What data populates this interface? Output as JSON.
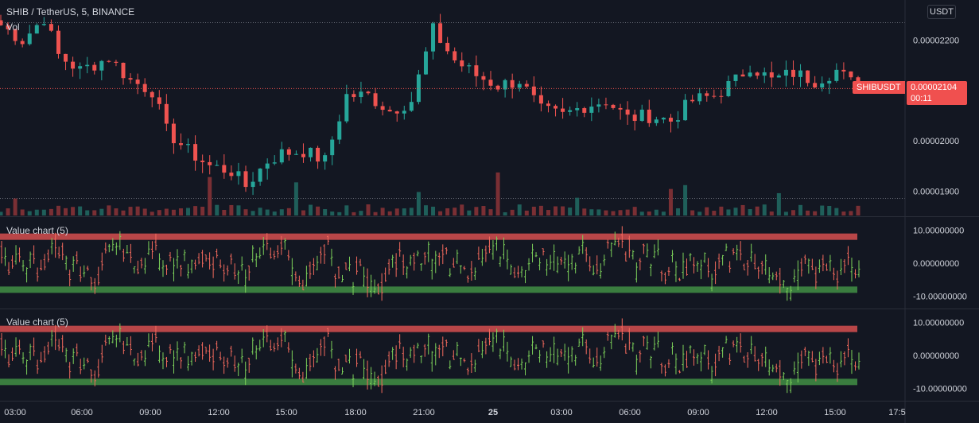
{
  "header": {
    "symbol_title": "SHIB / TetherUS, 5, BINANCE",
    "volume_label": "Vol",
    "currency_button": "USDT"
  },
  "last_price": {
    "symbol": "SHIBUSDT",
    "value": "0.00002104",
    "countdown": "00:11"
  },
  "colors": {
    "background": "#131722",
    "up": "#26a69a",
    "down": "#ef5350",
    "ind_up": "#7cd05a",
    "ind_down": "#f36a5d",
    "overbought_band": "#b84648",
    "oversold_band": "#3a7d3f",
    "axis_text": "#d1d4dc"
  },
  "x_axis": {
    "labels": [
      "03:00",
      "06:00",
      "09:00",
      "12:00",
      "15:00",
      "18:00",
      "21:00",
      "25",
      "03:00",
      "06:00",
      "09:00",
      "12:00",
      "15:00",
      "17:5"
    ]
  },
  "chart_data": [
    {
      "type": "candlestick",
      "title": "SHIB / TetherUS, 5, BINANCE",
      "ylabel": "USDT",
      "ylim": [
        1.85e-05,
        2.28e-05
      ],
      "y_ticks": [
        "0.00002200",
        "0.00002100",
        "0.00002000",
        "0.00001900"
      ],
      "grid": false,
      "series": [
        {
          "name": "SHIBUSDT",
          "anchors": [
            [
              0,
              2.23e-05
            ],
            [
              3,
              2.2e-05
            ],
            [
              6,
              2.245e-05
            ],
            [
              8,
              2.17e-05
            ],
            [
              11,
              2.14e-05
            ],
            [
              15,
              2.165e-05
            ],
            [
              18,
              2.12e-05
            ],
            [
              21,
              2.1e-05
            ],
            [
              23,
              2.02e-05
            ],
            [
              26,
              1.98e-05
            ],
            [
              29,
              1.95e-05
            ],
            [
              32,
              1.94e-05
            ],
            [
              34,
              1.91e-05
            ],
            [
              37,
              1.96e-05
            ],
            [
              39,
              1.975e-05
            ],
            [
              42,
              1.98e-05
            ],
            [
              45,
              1.96e-05
            ],
            [
              48,
              2.09e-05
            ],
            [
              51,
              2.09e-05
            ],
            [
              54,
              2.06e-05
            ],
            [
              57,
              2.08e-05
            ],
            [
              60,
              2.22e-05
            ],
            [
              63,
              2.16e-05
            ],
            [
              66,
              2.13e-05
            ],
            [
              69,
              2.11e-05
            ],
            [
              72,
              2.12e-05
            ],
            [
              75,
              2.06e-05
            ],
            [
              78,
              2.05e-05
            ],
            [
              81,
              2.07e-05
            ],
            [
              84,
              2.08e-05
            ],
            [
              87,
              2.045e-05
            ],
            [
              90,
              2.05e-05
            ],
            [
              93,
              2.04e-05
            ],
            [
              96,
              2.08e-05
            ],
            [
              99,
              2.09e-05
            ],
            [
              102,
              2.12e-05
            ],
            [
              104,
              2.15e-05
            ],
            [
              107,
              2.12e-05
            ],
            [
              110,
              2.135e-05
            ],
            [
              113,
              2.12e-05
            ],
            [
              116,
              2.14e-05
            ],
            [
              119,
              2.104e-05
            ]
          ]
        }
      ]
    },
    {
      "type": "bar",
      "title": "Vol",
      "series": [
        {
          "name": "Vol",
          "trend": "low with sporadic spikes"
        }
      ]
    },
    {
      "type": "ohlc",
      "title": "Value chart (5)",
      "ylim": [
        -12,
        12
      ],
      "y_ticks": [
        "10.00000000",
        "0.00000000",
        "-10.00000000"
      ],
      "bands": {
        "overbought": 8,
        "oversold": -8
      }
    },
    {
      "type": "ohlc",
      "title": "Value chart (5)",
      "ylim": [
        -12,
        12
      ],
      "y_ticks": [
        "10.00000000",
        "0.00000000",
        "-10.00000000"
      ],
      "bands": {
        "overbought": 8,
        "oversold": -8
      }
    }
  ]
}
